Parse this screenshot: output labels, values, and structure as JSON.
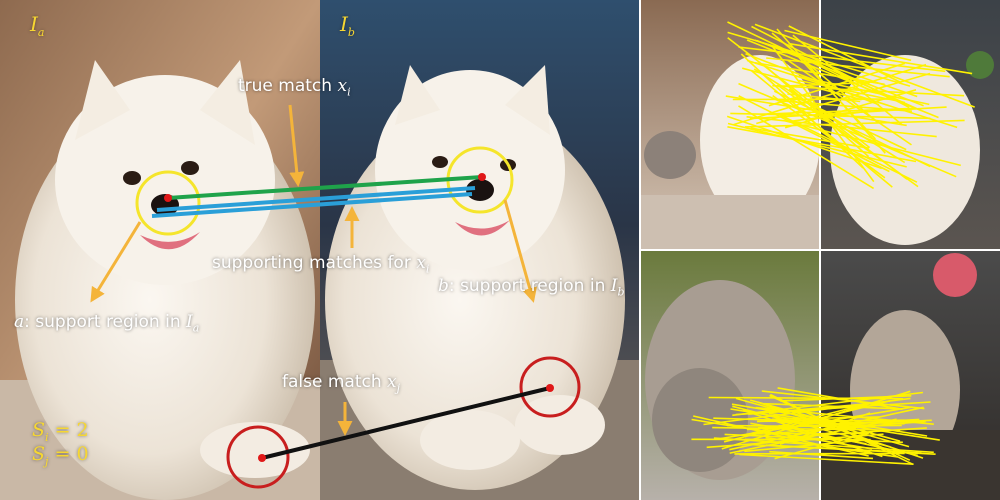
{
  "images": {
    "left_label": "I",
    "left_sub": "a",
    "right_label": "I",
    "right_sub": "b"
  },
  "annotations": {
    "true_match_text": "true match ",
    "true_match_var": "x",
    "true_match_sub": "i",
    "supporting_text": "supporting matches for ",
    "supporting_var": "x",
    "supporting_sub": "i",
    "region_a_var": "a",
    "region_a_text": ": support region in ",
    "region_a_img": "I",
    "region_a_img_sub": "a",
    "region_b_var": "b",
    "region_b_text": ": support region in ",
    "region_b_img": "I",
    "region_b_img_sub": "b",
    "false_match_text": "false match ",
    "false_match_var": "x",
    "false_match_sub": "j"
  },
  "scores": {
    "si_var": "S",
    "si_sub": "i",
    "si_value": " = 2",
    "sj_var": "S",
    "sj_sub": "j",
    "sj_value": " = 0"
  },
  "colors": {
    "annotation_arrow": "#f4b43a",
    "region_circle": "#f5e52b",
    "false_region_circle": "#c81e1e",
    "keypoint": "#e01818",
    "true_match_line": "#1fa34a",
    "supporting_line": "#2a9fd8",
    "false_match_line": "#111111",
    "example_match_lines": "#fff200"
  }
}
